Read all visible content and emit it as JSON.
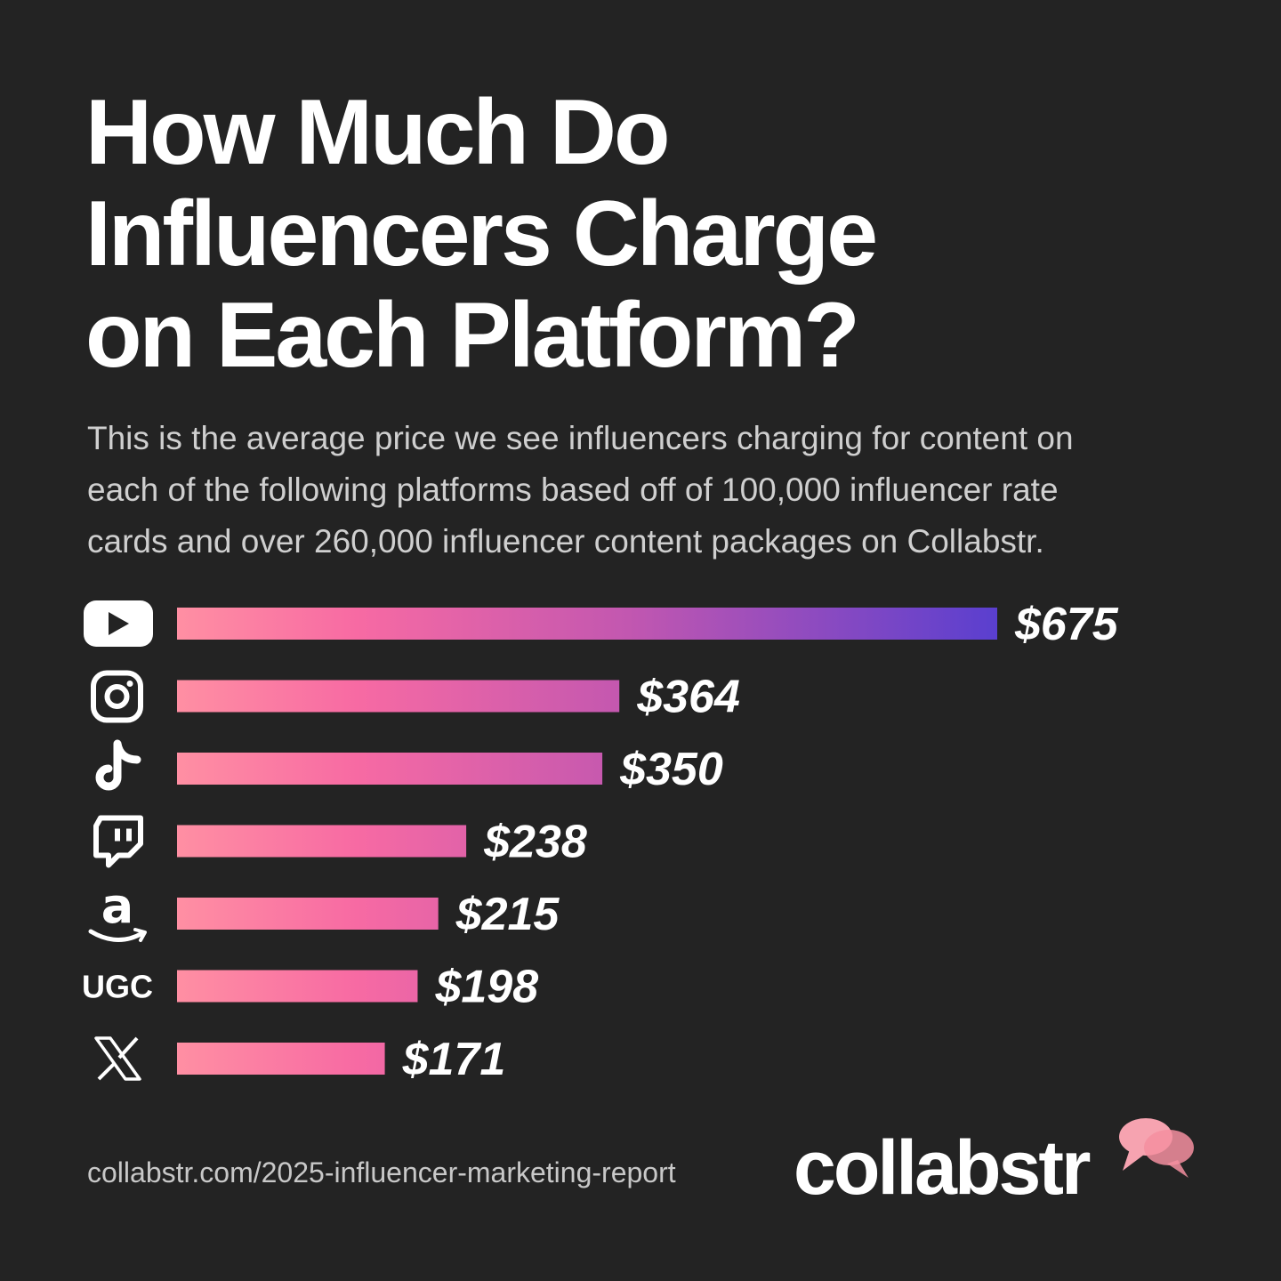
{
  "header": {
    "title_lines": [
      "How Much Do",
      "Influencers Charge",
      "on Each Platform?"
    ],
    "subtitle_lines": [
      "This is the average price we see influencers charging for content on",
      "each of the following platforms based off of 100,000 influencer rate",
      "cards and over 260,000 influencer content packages on Collabstr."
    ]
  },
  "chart_data": {
    "type": "bar",
    "orientation": "horizontal",
    "categories": [
      "YouTube",
      "Instagram",
      "TikTok",
      "Twitch",
      "Amazon",
      "UGC",
      "X"
    ],
    "category_icons": [
      "youtube-icon",
      "instagram-icon",
      "tiktok-icon",
      "twitch-icon",
      "amazon-icon",
      "ugc-label",
      "x-icon"
    ],
    "values": [
      675,
      364,
      350,
      238,
      215,
      198,
      171
    ],
    "value_labels": [
      "$675",
      "$364",
      "$350",
      "$238",
      "$215",
      "$198",
      "$171"
    ],
    "ugc_text": "UGC",
    "gradient_colors": [
      "#ff8fa3",
      "#f76aa3",
      "#c257b0",
      "#5a3fcf"
    ],
    "xlim": [
      0,
      675
    ],
    "grid": false,
    "legend": "none"
  },
  "footer": {
    "url": "collabstr.com/2025-influencer-marketing-report",
    "brand": "collabstr",
    "brand_colors": [
      "#f6a3b0",
      "#f48fa0"
    ]
  }
}
